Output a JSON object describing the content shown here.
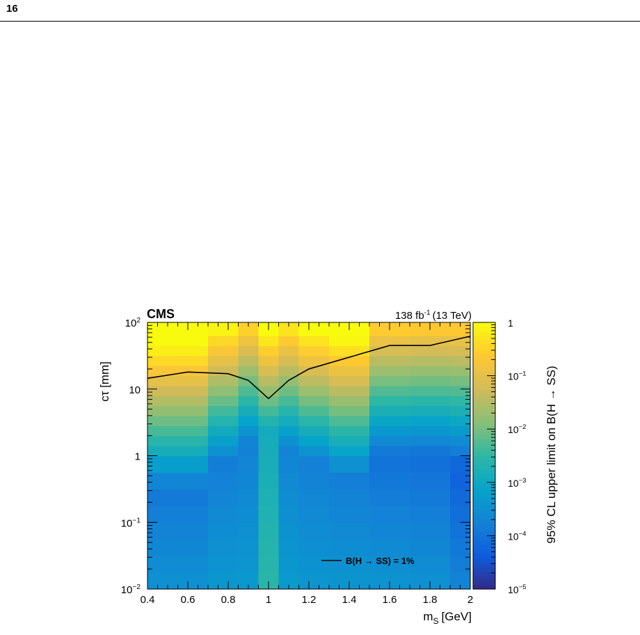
{
  "page": {
    "number": "16"
  },
  "colors": {
    "contour_line": "#000000",
    "palette": [
      "#352a87",
      "#0f5cdd",
      "#1481d6",
      "#06a4ca",
      "#2eb7a4",
      "#87bf77",
      "#d1bb59",
      "#fec832",
      "#f9fb0e"
    ]
  },
  "chart_data": {
    "type": "heatmap",
    "experiment_label": "CMS",
    "luminosity_label": "138 fb",
    "luminosity_exponent": "-1",
    "energy_label": "(13 TeV)",
    "xlabel_main": "m",
    "xlabel_sub": "S",
    "xlabel_unit": "[GeV]",
    "ylabel": "cτ [mm]",
    "zlabel": "95% CL upper limit on B(H → SS)",
    "xlim": [
      0.4,
      2.0
    ],
    "ylim": [
      0.01,
      100
    ],
    "y_scale": "log",
    "zlim": [
      1e-05,
      1
    ],
    "z_scale": "log",
    "x_ticks": [
      "0.4",
      "0.6",
      "0.8",
      "1",
      "1.2",
      "1.4",
      "1.6",
      "1.8",
      "2"
    ],
    "y_tick_labels": [
      {
        "value": 100,
        "base": "10",
        "exp": "2"
      },
      {
        "value": 10,
        "base": "10",
        "exp": ""
      },
      {
        "value": 1,
        "base": "1",
        "exp": ""
      },
      {
        "value": 0.1,
        "base": "10",
        "exp": "−1"
      },
      {
        "value": 0.01,
        "base": "10",
        "exp": "−2"
      }
    ],
    "z_tick_labels": [
      {
        "value": 1,
        "base": "1",
        "exp": ""
      },
      {
        "value": 0.1,
        "base": "10",
        "exp": "−1"
      },
      {
        "value": 0.01,
        "base": "10",
        "exp": "−2"
      },
      {
        "value": 0.001,
        "base": "10",
        "exp": "−3"
      },
      {
        "value": 0.0001,
        "base": "10",
        "exp": "−4"
      },
      {
        "value": 1e-05,
        "base": "10",
        "exp": "−5"
      }
    ],
    "x_bin_edges": [
      0.4,
      0.5,
      0.7,
      0.85,
      0.95,
      1.05,
      1.15,
      1.3,
      1.5,
      1.7,
      1.9,
      2.0
    ],
    "log10_ct_bin_edges": [
      -2,
      -1.75,
      -1.5,
      -1.25,
      -1,
      -0.75,
      -0.5,
      -0.25,
      0,
      0.15,
      0.3,
      0.45,
      0.6,
      0.75,
      0.9,
      1.05,
      1.2,
      1.35,
      1.5,
      1.65,
      1.8,
      2
    ],
    "log10_ct_turnover": [
      -0.5,
      -0.5,
      -0.1,
      0.2,
      0.4,
      0.1,
      -0.1,
      -0.3,
      0.0,
      0.0,
      -0.2
    ],
    "log10_limit_at_turnover": [
      -3.9,
      -3.9,
      -3.8,
      -3.75,
      -2.9,
      -3.7,
      -3.75,
      -3.8,
      -4.0,
      -4.05,
      -4.3
    ],
    "log10_limit_long_slope": [
      1.8,
      1.8,
      1.85,
      1.9,
      2.0,
      1.9,
      1.9,
      1.85,
      1.8,
      1.8,
      1.75
    ],
    "log10_limit_short_slope": [
      0.3,
      0.3,
      0.25,
      0.2,
      0.15,
      0.2,
      0.2,
      0.25,
      0.3,
      0.3,
      0.35
    ],
    "series": [
      {
        "name": "B(H → SS) = 1%",
        "x": [
          0.4,
          0.6,
          0.8,
          0.9,
          1.0,
          1.1,
          1.2,
          1.4,
          1.6,
          1.8,
          2.0
        ],
        "y": [
          14.5,
          18,
          17,
          13.5,
          7.2,
          13.5,
          20,
          30,
          45,
          45,
          62
        ]
      }
    ],
    "legend": {
      "label": "B(H → SS) = 1%",
      "position": "bottom-right"
    }
  }
}
